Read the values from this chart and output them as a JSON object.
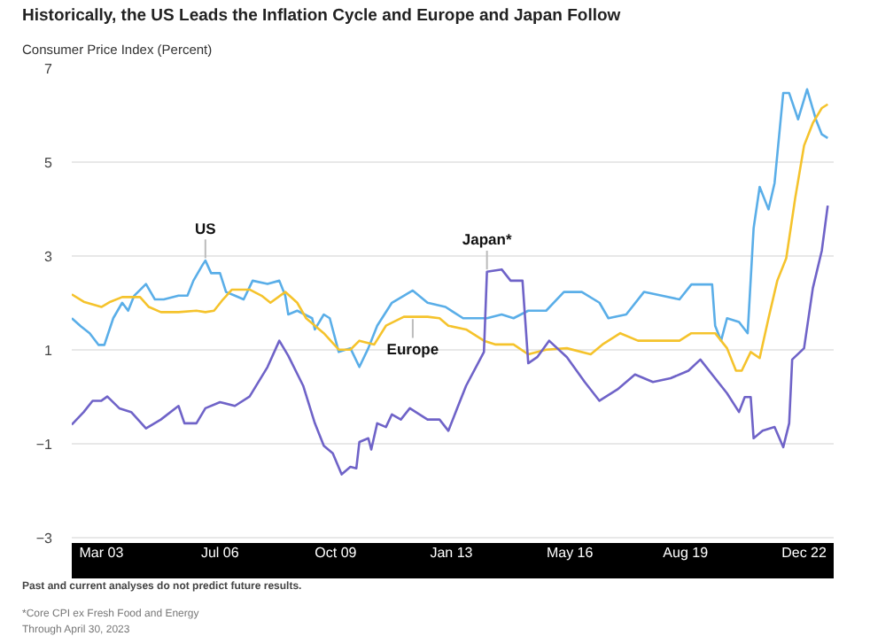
{
  "chart_data": {
    "type": "line",
    "title": "Historically, the US Leads the Inflation Cycle and Europe and Japan Follow",
    "subtitle": "Consumer Price Index (Percent)",
    "xlim": [
      "2002-05",
      "2023-10"
    ],
    "xticks": [
      {
        "value": "2003-03",
        "label": "Mar 03"
      },
      {
        "value": "2006-07",
        "label": "Jul 06"
      },
      {
        "value": "2009-10",
        "label": "Oct 09"
      },
      {
        "value": "2013-01",
        "label": "Jan 13"
      },
      {
        "value": "2016-05",
        "label": "May 16"
      },
      {
        "value": "2019-08",
        "label": "Aug 19"
      },
      {
        "value": "2022-12",
        "label": "Dec 22"
      }
    ],
    "ylim": [
      -3.5,
      7
    ],
    "yticks": [
      {
        "value": -3,
        "label": "−3"
      },
      {
        "value": -1,
        "label": "−1"
      },
      1,
      3,
      5,
      7
    ],
    "grid": "y",
    "series": [
      {
        "color": "#5aaee8",
        "x": [
          "2002-05",
          "2002-08",
          "2002-11",
          "2003-02",
          "2003-04",
          "2003-07",
          "2003-10",
          "2003-12",
          "2004-02",
          "2004-06",
          "2004-09",
          "2004-12",
          "2005-05",
          "2005-08",
          "2005-10",
          "2006-01",
          "2006-02",
          "2006-04",
          "2006-07",
          "2006-09",
          "2006-12",
          "2007-03",
          "2007-06",
          "2007-11",
          "2008-03",
          "2008-05",
          "2008-06",
          "2008-09",
          "2009-02",
          "2009-03",
          "2009-06",
          "2009-08",
          "2009-11",
          "2010-03",
          "2010-06",
          "2010-09",
          "2010-12",
          "2011-05",
          "2011-09",
          "2011-12",
          "2012-05",
          "2012-11",
          "2013-05",
          "2013-10",
          "2014-01",
          "2014-06",
          "2014-10",
          "2015-03",
          "2015-09",
          "2016-03",
          "2016-09",
          "2017-03",
          "2017-06",
          "2017-12",
          "2018-06",
          "2018-12",
          "2019-06",
          "2019-10",
          "2020-05",
          "2020-06",
          "2020-08",
          "2020-10",
          "2021-02",
          "2021-05",
          "2021-07",
          "2021-09",
          "2021-12",
          "2022-02",
          "2022-05",
          "2022-07",
          "2022-10",
          "2023-01",
          "2023-04",
          "2023-06",
          "2023-08"
        ],
        "values": [
          1.67,
          1.5,
          1.35,
          1.1,
          1.1,
          1.67,
          2.0,
          1.83,
          2.15,
          2.4,
          2.07,
          2.07,
          2.15,
          2.15,
          2.47,
          2.8,
          2.9,
          2.63,
          2.63,
          2.23,
          2.15,
          2.07,
          2.47,
          2.4,
          2.47,
          2.15,
          1.75,
          1.83,
          1.67,
          1.43,
          1.75,
          1.67,
          0.95,
          1.03,
          0.63,
          1.03,
          1.51,
          2.0,
          2.15,
          2.26,
          2.0,
          1.91,
          1.67,
          1.67,
          1.67,
          1.75,
          1.67,
          1.83,
          1.83,
          2.23,
          2.23,
          2.0,
          1.67,
          1.75,
          2.23,
          2.15,
          2.07,
          2.39,
          2.39,
          1.51,
          1.19,
          1.67,
          1.59,
          1.35,
          3.59,
          4.47,
          3.99,
          4.55,
          6.47,
          6.47,
          5.91,
          6.55,
          5.91,
          5.59,
          5.51
        ]
      },
      {
        "color": "#f5c32c",
        "x": [
          "2002-05",
          "2002-09",
          "2003-03",
          "2003-06",
          "2003-10",
          "2004-04",
          "2004-07",
          "2004-11",
          "2005-05",
          "2005-11",
          "2006-02",
          "2006-05",
          "2006-08",
          "2006-11",
          "2007-05",
          "2007-09",
          "2007-12",
          "2008-05",
          "2008-09",
          "2008-12",
          "2009-06",
          "2009-11",
          "2010-03",
          "2010-06",
          "2010-11",
          "2011-03",
          "2011-09",
          "2012-05",
          "2012-09",
          "2012-12",
          "2013-06",
          "2013-12",
          "2014-04",
          "2014-10",
          "2015-03",
          "2015-09",
          "2016-04",
          "2016-12",
          "2017-04",
          "2017-10",
          "2018-04",
          "2019-06",
          "2019-10",
          "2020-06",
          "2020-10",
          "2021-01",
          "2021-03",
          "2021-06",
          "2021-09",
          "2021-12",
          "2022-03",
          "2022-06",
          "2022-09",
          "2022-12",
          "2023-03",
          "2023-06",
          "2023-08"
        ],
        "values": [
          2.18,
          2.02,
          1.91,
          2.02,
          2.12,
          2.12,
          1.91,
          1.8,
          1.8,
          1.83,
          1.8,
          1.83,
          2.07,
          2.28,
          2.28,
          2.15,
          2.0,
          2.23,
          2.0,
          1.67,
          1.35,
          1.0,
          1.0,
          1.19,
          1.11,
          1.51,
          1.7,
          1.7,
          1.67,
          1.51,
          1.43,
          1.19,
          1.11,
          1.11,
          0.9,
          1.0,
          1.03,
          0.9,
          1.11,
          1.35,
          1.19,
          1.19,
          1.35,
          1.35,
          1.03,
          0.55,
          0.55,
          0.95,
          0.82,
          1.67,
          2.47,
          2.95,
          4.23,
          5.35,
          5.83,
          6.15,
          6.23
        ]
      },
      {
        "color": "#6f63c8",
        "x": [
          "2002-05",
          "2002-09",
          "2002-12",
          "2003-03",
          "2003-05",
          "2003-09",
          "2004-01",
          "2004-06",
          "2004-11",
          "2005-05",
          "2005-07",
          "2005-11",
          "2006-02",
          "2006-07",
          "2006-12",
          "2007-05",
          "2007-11",
          "2008-03",
          "2008-06",
          "2008-11",
          "2009-03",
          "2009-06",
          "2009-09",
          "2009-12",
          "2010-03",
          "2010-05",
          "2010-06",
          "2010-09",
          "2010-10",
          "2010-12",
          "2011-03",
          "2011-05",
          "2011-08",
          "2011-11",
          "2012-03",
          "2012-05",
          "2012-09",
          "2012-12",
          "2013-03",
          "2013-06",
          "2013-10",
          "2013-12",
          "2014-01",
          "2014-06",
          "2014-09",
          "2015-01",
          "2015-03",
          "2015-06",
          "2015-10",
          "2016-04",
          "2016-10",
          "2017-03",
          "2017-09",
          "2018-03",
          "2018-09",
          "2019-03",
          "2019-09",
          "2020-01",
          "2020-05",
          "2020-10",
          "2021-02",
          "2021-04",
          "2021-06",
          "2021-07",
          "2021-10",
          "2022-02",
          "2022-05",
          "2022-07",
          "2022-08",
          "2022-12",
          "2023-03",
          "2023-06",
          "2023-08"
        ],
        "values": [
          -0.6,
          -0.33,
          -0.09,
          -0.09,
          0.0,
          -0.25,
          -0.33,
          -0.68,
          -0.49,
          -0.2,
          -0.57,
          -0.57,
          -0.25,
          -0.12,
          -0.2,
          0.0,
          0.63,
          1.19,
          0.87,
          0.23,
          -0.57,
          -1.05,
          -1.21,
          -1.66,
          -1.5,
          -1.53,
          -0.97,
          -0.89,
          -1.13,
          -0.57,
          -0.65,
          -0.38,
          -0.49,
          -0.25,
          -0.41,
          -0.49,
          -0.49,
          -0.73,
          -0.25,
          0.23,
          0.71,
          0.95,
          2.66,
          2.71,
          2.47,
          2.47,
          0.71,
          0.84,
          1.19,
          0.84,
          0.31,
          -0.09,
          0.15,
          0.47,
          0.31,
          0.39,
          0.55,
          0.79,
          0.47,
          0.07,
          -0.33,
          -0.01,
          -0.01,
          -0.89,
          -0.73,
          -0.65,
          -1.08,
          -0.57,
          0.79,
          1.03,
          2.31,
          3.11,
          4.07
        ]
      }
    ],
    "annotations": [
      {
        "text": "US",
        "x": "2006-02",
        "y": 2.9
      },
      {
        "text": "Europe",
        "x": "2011-12",
        "y": 1.7
      },
      {
        "text": "Japan*",
        "x": "2014-01",
        "y": 2.66
      },
      "Past and current analyses do not predict future results.",
      "*Core CPI ex Fresh Food and Energy",
      "Through April 30, 2023"
    ]
  }
}
